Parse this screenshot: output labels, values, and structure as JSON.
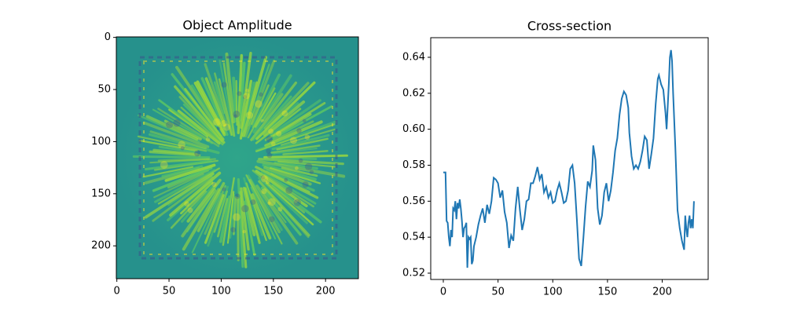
{
  "chart_data": [
    {
      "type": "image",
      "title": "Object Amplitude",
      "xlim": [
        -0.5,
        231.5
      ],
      "ylim": [
        231.5,
        -0.5
      ],
      "xticks": [
        0,
        50,
        100,
        150,
        200
      ],
      "yticks": [
        0,
        50,
        100,
        150,
        200
      ]
    },
    {
      "type": "line",
      "title": "Cross-section",
      "color": "#1f77b4",
      "xlim": [
        -11.5,
        242
      ],
      "ylim": [
        0.5165,
        0.6509
      ],
      "xticks": [
        0,
        50,
        100,
        150,
        200
      ],
      "yticks": [
        0.52,
        0.54,
        0.56,
        0.58,
        {
          "value": 0.6,
          "label": "0.60"
        },
        0.62,
        0.64
      ],
      "x": [
        0,
        2,
        3,
        4,
        5,
        6,
        7,
        8,
        9,
        10,
        11,
        12,
        13,
        14,
        15,
        16,
        17,
        18,
        19,
        20,
        21,
        22,
        23,
        24,
        25,
        26,
        27,
        28,
        30,
        32,
        34,
        36,
        38,
        40,
        42,
        44,
        46,
        48,
        50,
        52,
        54,
        56,
        58,
        60,
        62,
        64,
        66,
        68,
        70,
        72,
        74,
        76,
        78,
        80,
        82,
        84,
        86,
        88,
        90,
        92,
        94,
        96,
        98,
        100,
        102,
        104,
        106,
        108,
        110,
        112,
        114,
        116,
        118,
        120,
        122,
        124,
        126,
        128,
        130,
        132,
        134,
        136,
        137,
        139,
        141,
        143,
        145,
        147,
        149,
        151,
        153,
        155,
        157,
        159,
        161,
        163,
        165,
        167,
        169,
        170,
        172,
        174,
        176,
        178,
        180,
        182,
        184,
        186,
        188,
        190,
        192,
        194,
        196,
        197,
        199,
        201,
        203,
        204,
        206,
        207,
        208,
        209,
        210,
        212,
        214,
        216,
        218,
        220,
        221,
        222,
        223,
        224,
        225,
        226,
        227,
        228,
        229
      ],
      "values": [
        0.576,
        0.576,
        0.549,
        0.548,
        0.54,
        0.535,
        0.544,
        0.54,
        0.556,
        0.555,
        0.56,
        0.55,
        0.559,
        0.556,
        0.561,
        0.556,
        0.549,
        0.54,
        0.545,
        0.546,
        0.548,
        0.523,
        0.54,
        0.539,
        0.54,
        0.525,
        0.527,
        0.535,
        0.54,
        0.547,
        0.552,
        0.556,
        0.548,
        0.558,
        0.553,
        0.56,
        0.573,
        0.572,
        0.57,
        0.562,
        0.566,
        0.554,
        0.548,
        0.534,
        0.541,
        0.538,
        0.556,
        0.568,
        0.555,
        0.544,
        0.55,
        0.56,
        0.561,
        0.57,
        0.57,
        0.574,
        0.579,
        0.572,
        0.575,
        0.565,
        0.568,
        0.562,
        0.565,
        0.559,
        0.56,
        0.566,
        0.57,
        0.565,
        0.559,
        0.56,
        0.566,
        0.578,
        0.58,
        0.57,
        0.55,
        0.528,
        0.524,
        0.54,
        0.557,
        0.571,
        0.568,
        0.577,
        0.591,
        0.583,
        0.556,
        0.547,
        0.552,
        0.565,
        0.57,
        0.56,
        0.566,
        0.576,
        0.588,
        0.595,
        0.608,
        0.617,
        0.621,
        0.619,
        0.612,
        0.598,
        0.585,
        0.578,
        0.58,
        0.578,
        0.582,
        0.588,
        0.596,
        0.594,
        0.578,
        0.586,
        0.595,
        0.614,
        0.628,
        0.63,
        0.625,
        0.622,
        0.609,
        0.6,
        0.625,
        0.64,
        0.644,
        0.638,
        0.62,
        0.59,
        0.555,
        0.545,
        0.538,
        0.533,
        0.552,
        0.545,
        0.54,
        0.548,
        0.552,
        0.545,
        0.55,
        0.545,
        0.56
      ]
    }
  ]
}
